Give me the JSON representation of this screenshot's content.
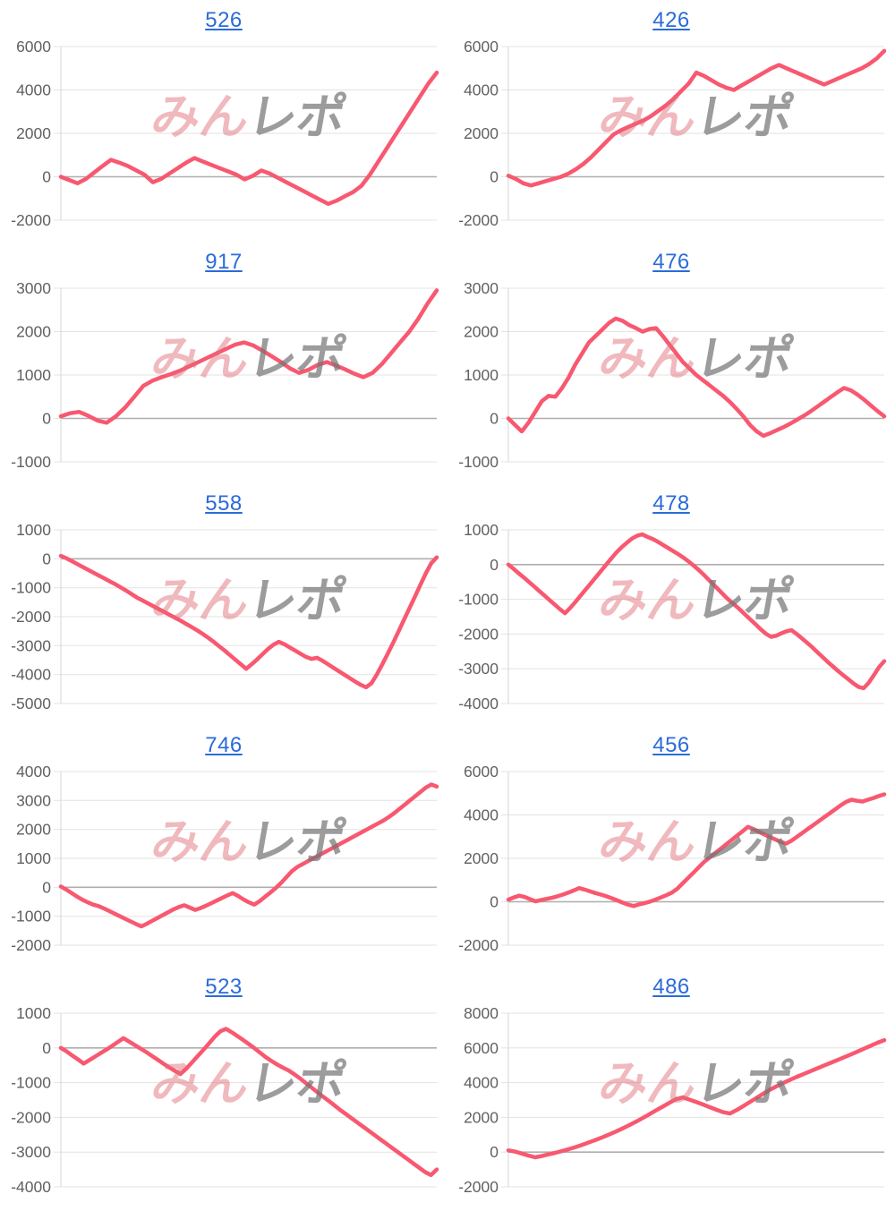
{
  "watermark": {
    "part1": "みん",
    "part2": "レポ"
  },
  "chart_style": {
    "line_color": "#f85870",
    "grid_color": "#e3e3e3",
    "zero_line_color": "#aeaeae",
    "axis_line_color": "#d6d6d6",
    "axis_label_color": "#616161",
    "title_link_color": "#2b6bd9",
    "background": "#ffffff"
  },
  "chart_data": [
    {
      "type": "line",
      "title": "526",
      "ylim": [
        -2000,
        6000
      ],
      "yticks": [
        6000,
        4000,
        2000,
        0,
        -2000
      ],
      "grid": true,
      "legend": "none",
      "values": [
        0,
        -150,
        -300,
        -100,
        200,
        500,
        780,
        650,
        500,
        300,
        100,
        -250,
        -100,
        150,
        400,
        650,
        860,
        700,
        550,
        400,
        250,
        100,
        -120,
        50,
        290,
        150,
        -50,
        -250,
        -450,
        -650,
        -850,
        -1050,
        -1250,
        -1100,
        -900,
        -700,
        -410,
        100,
        700,
        1300,
        1900,
        2500,
        3100,
        3700,
        4300,
        4800
      ]
    },
    {
      "type": "line",
      "title": "426",
      "ylim": [
        -2000,
        6000
      ],
      "yticks": [
        6000,
        4000,
        2000,
        0,
        -2000
      ],
      "grid": true,
      "legend": "none",
      "values": [
        50,
        -100,
        -300,
        -400,
        -300,
        -200,
        -100,
        0,
        150,
        350,
        600,
        900,
        1250,
        1600,
        1950,
        2150,
        2300,
        2450,
        2600,
        2800,
        3050,
        3300,
        3600,
        3950,
        4300,
        4800,
        4650,
        4450,
        4250,
        4100,
        4000,
        4200,
        4400,
        4600,
        4800,
        5000,
        5150,
        5000,
        4850,
        4700,
        4550,
        4400,
        4250,
        4400,
        4550,
        4700,
        4850,
        5000,
        5200,
        5450,
        5800
      ]
    },
    {
      "type": "line",
      "title": "917",
      "ylim": [
        -1000,
        3000
      ],
      "yticks": [
        3000,
        2000,
        1000,
        0,
        -1000
      ],
      "grid": true,
      "legend": "none",
      "values": [
        50,
        120,
        150,
        60,
        -50,
        -100,
        50,
        250,
        500,
        750,
        870,
        950,
        1020,
        1100,
        1200,
        1300,
        1400,
        1500,
        1600,
        1700,
        1750,
        1680,
        1560,
        1430,
        1300,
        1150,
        1050,
        1120,
        1230,
        1300,
        1220,
        1130,
        1030,
        950,
        1050,
        1250,
        1500,
        1750,
        2000,
        2300,
        2650,
        2950
      ]
    },
    {
      "type": "line",
      "title": "476",
      "ylim": [
        -1000,
        3000
      ],
      "yticks": [
        3000,
        2000,
        1000,
        0,
        -1000
      ],
      "grid": true,
      "legend": "none",
      "values": [
        0,
        -150,
        -300,
        -100,
        150,
        400,
        520,
        500,
        700,
        950,
        1250,
        1500,
        1750,
        1900,
        2050,
        2200,
        2300,
        2250,
        2150,
        2080,
        2000,
        2060,
        2080,
        1900,
        1700,
        1500,
        1300,
        1150,
        1000,
        880,
        760,
        640,
        520,
        380,
        220,
        50,
        -150,
        -300,
        -400,
        -340,
        -270,
        -200,
        -120,
        -30,
        60,
        160,
        270,
        380,
        490,
        600,
        700,
        650,
        550,
        430,
        300,
        170,
        50
      ]
    },
    {
      "type": "line",
      "title": "558",
      "ylim": [
        -5000,
        1000
      ],
      "yticks": [
        1000,
        0,
        -1000,
        -2000,
        -3000,
        -4000,
        -5000
      ],
      "grid": true,
      "legend": "none",
      "values": [
        100,
        20,
        -80,
        -180,
        -280,
        -380,
        -480,
        -580,
        -680,
        -780,
        -880,
        -990,
        -1100,
        -1220,
        -1340,
        -1440,
        -1540,
        -1640,
        -1740,
        -1840,
        -1940,
        -2040,
        -2140,
        -2250,
        -2360,
        -2470,
        -2590,
        -2720,
        -2860,
        -3010,
        -3160,
        -3320,
        -3480,
        -3640,
        -3800,
        -3650,
        -3480,
        -3300,
        -3120,
        -2970,
        -2870,
        -2950,
        -3060,
        -3170,
        -3280,
        -3390,
        -3460,
        -3420,
        -3520,
        -3640,
        -3760,
        -3880,
        -4000,
        -4120,
        -4240,
        -4350,
        -4440,
        -4300,
        -4000,
        -3650,
        -3280,
        -2900,
        -2500,
        -2100,
        -1700,
        -1300,
        -900,
        -500,
        -150,
        50
      ]
    },
    {
      "type": "line",
      "title": "478",
      "ylim": [
        -4000,
        1000
      ],
      "yticks": [
        1000,
        0,
        -1000,
        -2000,
        -3000,
        -4000
      ],
      "grid": true,
      "legend": "none",
      "values": [
        0,
        -120,
        -250,
        -370,
        -500,
        -630,
        -760,
        -890,
        -1020,
        -1150,
        -1280,
        -1400,
        -1250,
        -1080,
        -900,
        -720,
        -540,
        -360,
        -180,
        0,
        180,
        350,
        500,
        630,
        750,
        830,
        870,
        800,
        740,
        660,
        570,
        480,
        390,
        300,
        200,
        90,
        -30,
        -160,
        -300,
        -450,
        -600,
        -750,
        -900,
        -1040,
        -1170,
        -1300,
        -1440,
        -1580,
        -1720,
        -1860,
        -1990,
        -2080,
        -2050,
        -1980,
        -1920,
        -1890,
        -2000,
        -2120,
        -2250,
        -2380,
        -2520,
        -2660,
        -2800,
        -2930,
        -3060,
        -3180,
        -3300,
        -3420,
        -3520,
        -3560,
        -3400,
        -3180,
        -2950,
        -2780
      ]
    },
    {
      "type": "line",
      "title": "746",
      "ylim": [
        -2000,
        4000
      ],
      "yticks": [
        4000,
        3000,
        2000,
        1000,
        0,
        -1000,
        -2000
      ],
      "grid": true,
      "legend": "none",
      "values": [
        30,
        -80,
        -200,
        -320,
        -430,
        -520,
        -600,
        -650,
        -730,
        -820,
        -910,
        -1000,
        -1090,
        -1180,
        -1270,
        -1350,
        -1260,
        -1160,
        -1060,
        -960,
        -860,
        -760,
        -680,
        -620,
        -700,
        -780,
        -720,
        -640,
        -550,
        -460,
        -370,
        -280,
        -200,
        -300,
        -420,
        -520,
        -600,
        -480,
        -330,
        -180,
        -30,
        150,
        350,
        550,
        700,
        800,
        900,
        1000,
        1100,
        1200,
        1300,
        1400,
        1500,
        1600,
        1700,
        1800,
        1900,
        2000,
        2100,
        2200,
        2300,
        2420,
        2550,
        2700,
        2850,
        3000,
        3150,
        3300,
        3450,
        3550,
        3480
      ]
    },
    {
      "type": "line",
      "title": "456",
      "ylim": [
        -2000,
        6000
      ],
      "yticks": [
        6000,
        4000,
        2000,
        0,
        -2000
      ],
      "grid": true,
      "legend": "none",
      "values": [
        100,
        200,
        280,
        220,
        120,
        20,
        80,
        130,
        180,
        250,
        330,
        420,
        520,
        630,
        560,
        480,
        400,
        330,
        250,
        160,
        60,
        -40,
        -130,
        -200,
        -120,
        -60,
        10,
        100,
        200,
        300,
        420,
        600,
        850,
        1100,
        1350,
        1600,
        1850,
        2050,
        2250,
        2450,
        2650,
        2850,
        3050,
        3250,
        3450,
        3350,
        3220,
        3100,
        2980,
        2870,
        2760,
        2680,
        2820,
        3000,
        3180,
        3360,
        3540,
        3720,
        3900,
        4080,
        4260,
        4440,
        4600,
        4700,
        4650,
        4620,
        4700,
        4780,
        4870,
        4950
      ]
    },
    {
      "type": "line",
      "title": "523",
      "ylim": [
        -4000,
        1000
      ],
      "yticks": [
        1000,
        0,
        -1000,
        -2000,
        -3000,
        -4000
      ],
      "grid": true,
      "legend": "none",
      "values": [
        0,
        -100,
        -220,
        -330,
        -450,
        -350,
        -250,
        -150,
        -50,
        60,
        170,
        280,
        180,
        80,
        -20,
        -120,
        -230,
        -340,
        -450,
        -560,
        -660,
        -750,
        -600,
        -420,
        -240,
        -60,
        130,
        320,
        480,
        550,
        450,
        340,
        230,
        110,
        -10,
        -140,
        -270,
        -380,
        -480,
        -570,
        -650,
        -760,
        -880,
        -1010,
        -1140,
        -1270,
        -1400,
        -1520,
        -1650,
        -1780,
        -1900,
        -2020,
        -2140,
        -2260,
        -2380,
        -2500,
        -2620,
        -2740,
        -2860,
        -2980,
        -3100,
        -3220,
        -3340,
        -3460,
        -3580,
        -3660,
        -3500
      ]
    },
    {
      "type": "line",
      "title": "486",
      "ylim": [
        -2000,
        8000
      ],
      "yticks": [
        8000,
        6000,
        4000,
        2000,
        0,
        -2000
      ],
      "grid": true,
      "legend": "none",
      "values": [
        100,
        30,
        -80,
        -200,
        -300,
        -220,
        -130,
        -40,
        60,
        170,
        290,
        420,
        560,
        700,
        850,
        1010,
        1180,
        1360,
        1550,
        1750,
        1960,
        2180,
        2400,
        2620,
        2840,
        3050,
        3150,
        3020,
        2880,
        2740,
        2590,
        2440,
        2300,
        2220,
        2420,
        2650,
        2890,
        3130,
        3370,
        3600,
        3800,
        3990,
        4170,
        4340,
        4500,
        4660,
        4820,
        4980,
        5140,
        5300,
        5460,
        5620,
        5790,
        5960,
        6130,
        6300,
        6450
      ]
    }
  ]
}
